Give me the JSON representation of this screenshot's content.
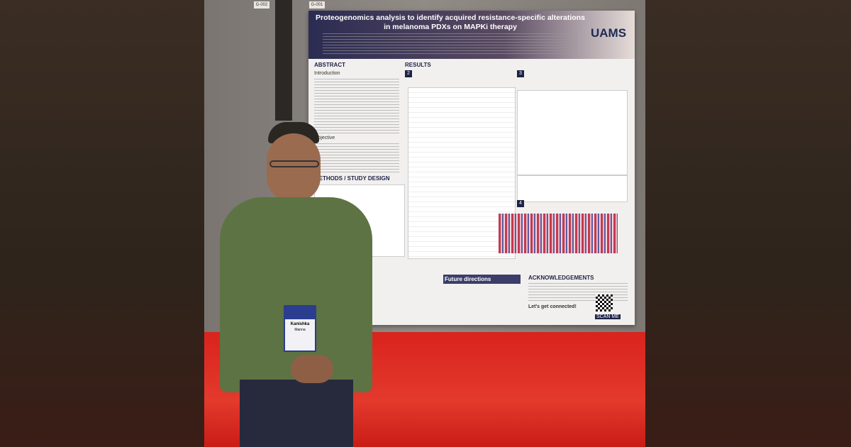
{
  "signs": [
    "G-002",
    "G-001"
  ],
  "poster": {
    "title": "Proteogenomics analysis to identify acquired resistance-specific alterations in melanoma PDXs on MAPKi therapy",
    "logo": "UAMS",
    "abstract": {
      "heading": "ABSTRACT",
      "subheadings": [
        "Introduction",
        "Objective"
      ]
    },
    "methods": "METHODS / STUDY DESIGN",
    "results": {
      "heading": "RESULTS",
      "panels": [
        "2",
        "3",
        "4"
      ]
    },
    "future": "Future directions",
    "acknowledgements": "ACKNOWLEDGEMENTS",
    "connect": "Let's get connected!",
    "scan": "SCAN ME"
  },
  "badge": {
    "first": "Kanishka",
    "last": "Manna"
  }
}
